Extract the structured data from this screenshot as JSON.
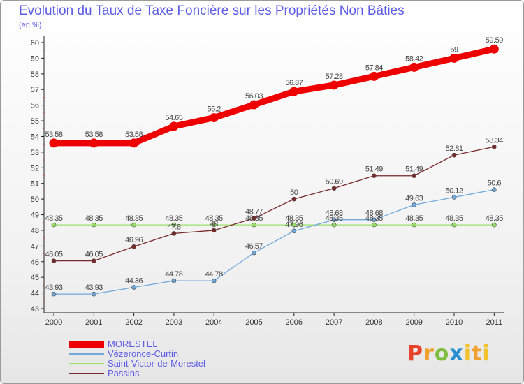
{
  "title": "Evolution du Taux de Taxe Foncière sur les Propriétés Non Bâties",
  "unit_label": "(en %)",
  "logo_text": "Proxiti",
  "chart_data": {
    "type": "line",
    "title": "Evolution du Taux de Taxe Foncière sur les Propriétés Non Bâties",
    "ylabel": "(en %)",
    "xlabel": "",
    "ylim": [
      43,
      60
    ],
    "yticks": [
      "43",
      "44",
      "45",
      "46",
      "47",
      "48",
      "49",
      "50",
      "51",
      "52",
      "53",
      "54",
      "55",
      "56",
      "57",
      "58",
      "59",
      "60"
    ],
    "grid": false,
    "legend_position": "bottom-left",
    "x": [
      "2000",
      "2001",
      "2002",
      "2003",
      "2004",
      "2005",
      "2006",
      "2007",
      "2008",
      "2009",
      "2010",
      "2011"
    ],
    "series": [
      {
        "name": "MORESTEL",
        "color": "#ee0000",
        "values": [
          53.58,
          53.58,
          53.58,
          54.65,
          55.2,
          56.03,
          56.87,
          57.28,
          57.84,
          58.42,
          59,
          59.59
        ],
        "labels": [
          "53.58",
          "53.58",
          "53.58",
          "54.65",
          "55.2",
          "56.03",
          "56.87",
          "57.28",
          "57.84",
          "58.42",
          "59",
          "59.59"
        ]
      },
      {
        "name": "Vézeronce-Curtin",
        "color": "#6fa8dc",
        "values": [
          43.93,
          43.93,
          44.36,
          44.78,
          44.78,
          46.57,
          47.96,
          48.68,
          48.68,
          49.63,
          50.12,
          50.6
        ],
        "labels": [
          "43.93",
          "43.93",
          "44.36",
          "44.78",
          "44.78",
          "46.57",
          "47.96",
          "48.68",
          "48.68",
          "49.63",
          "50.12",
          "50.6"
        ]
      },
      {
        "name": "Saint-Victor-de-Morestel",
        "color": "#99e066",
        "values": [
          48.35,
          48.35,
          48.35,
          48.35,
          48.35,
          48.35,
          48.35,
          48.35,
          48.35,
          48.35,
          48.35,
          48.35
        ],
        "labels": [
          "48.35",
          "48.35",
          "48.35",
          "48.35",
          "48.35",
          "48.35",
          "48.35",
          "48.35",
          "48.35",
          "48.35",
          "48.35",
          "48.35"
        ]
      },
      {
        "name": "Passins",
        "color": "#7a2a2a",
        "values": [
          46.05,
          46.05,
          46.96,
          47.8,
          48,
          48.77,
          50,
          50.69,
          51.49,
          51.49,
          52.81,
          53.34
        ],
        "labels": [
          "46.05",
          "46.05",
          "46.96",
          "47.8",
          "48",
          "48.77",
          "50",
          "50.69",
          "51.49",
          "51.49",
          "52.81",
          "53.34"
        ]
      }
    ]
  }
}
